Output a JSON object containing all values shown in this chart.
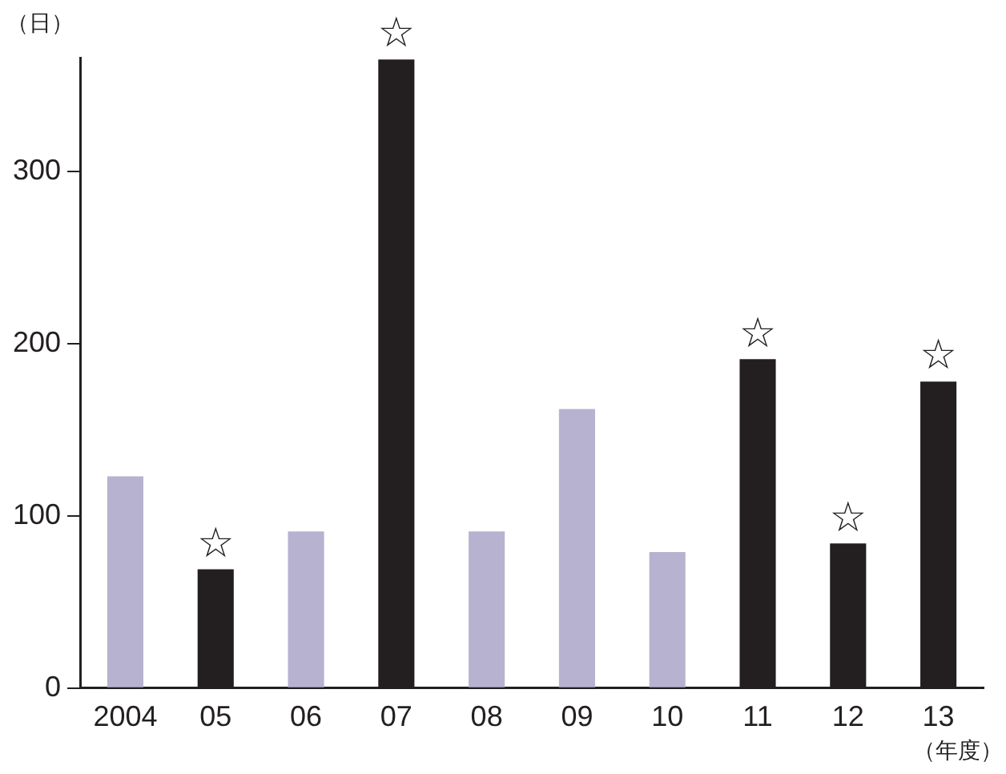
{
  "chart_data": {
    "type": "bar",
    "ylabel": "（日）",
    "xlabel": "（年度）",
    "categories": [
      "2004",
      "05",
      "06",
      "07",
      "08",
      "09",
      "10",
      "11",
      "12",
      "13"
    ],
    "values": [
      123,
      69,
      91,
      365,
      91,
      162,
      79,
      191,
      84,
      178
    ],
    "colors": [
      "#b6b2d0",
      "#231f20",
      "#b6b2d0",
      "#231f20",
      "#b6b2d0",
      "#b6b2d0",
      "#b6b2d0",
      "#231f20",
      "#231f20",
      "#231f20"
    ],
    "ylim": [
      0,
      366
    ],
    "yticks": [
      0,
      100,
      200,
      300
    ],
    "grid": false,
    "legend": false,
    "annotations": [
      {
        "text": "☆",
        "x": "05",
        "y": 69
      },
      {
        "text": "☆",
        "x": "07",
        "y": 365
      },
      {
        "text": "☆",
        "x": "11",
        "y": 191
      },
      {
        "text": "☆",
        "x": "12",
        "y": 84
      },
      {
        "text": "☆",
        "x": "13",
        "y": 178
      }
    ]
  }
}
